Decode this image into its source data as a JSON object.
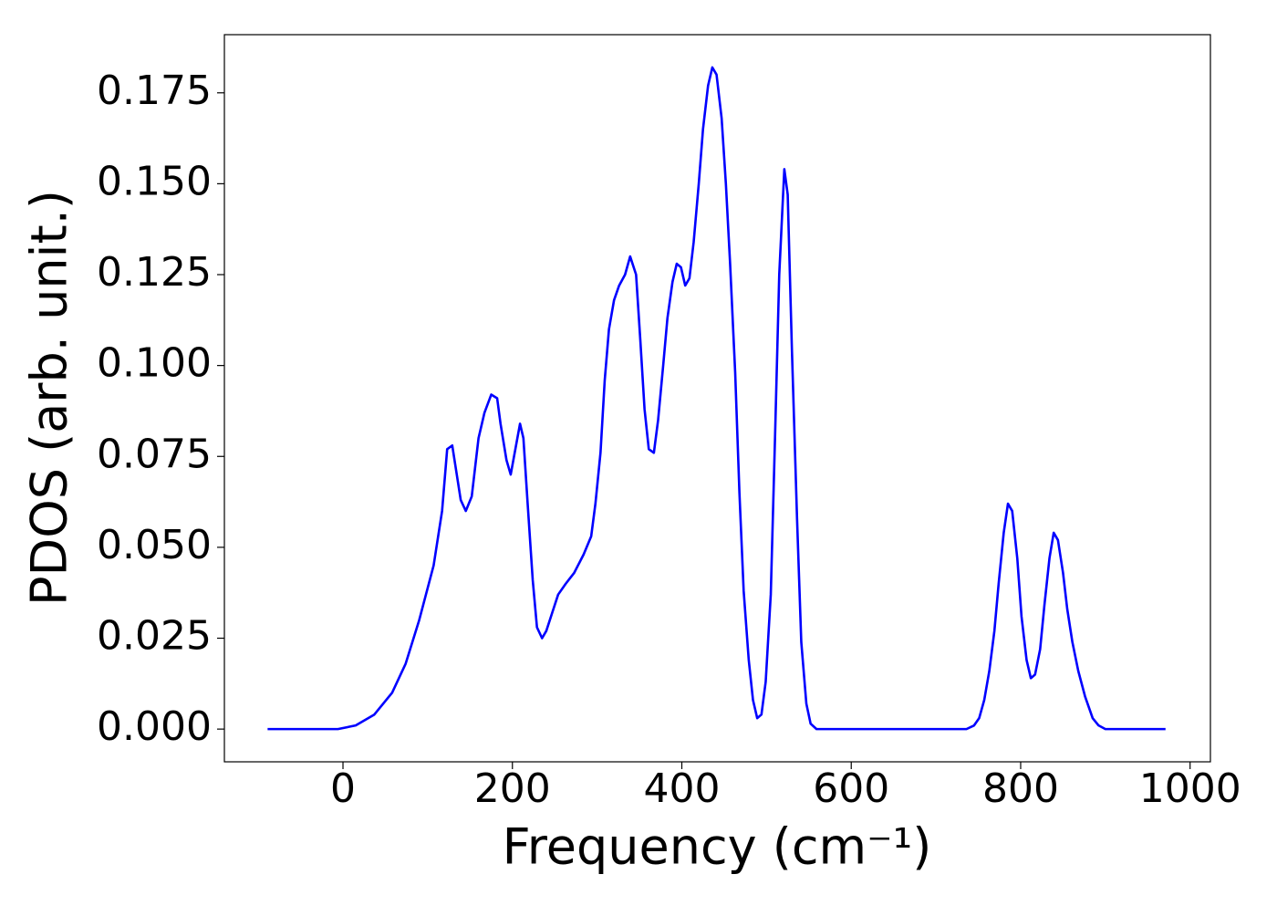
{
  "chart_data": {
    "type": "line",
    "xlabel": "Frequency (cm⁻¹)",
    "ylabel": "PDOS (arb. unit.)",
    "color": "#0000ff",
    "xlim": [
      -140,
      1024
    ],
    "ylim": [
      -0.009,
      0.191
    ],
    "xticks": [
      0,
      200,
      400,
      600,
      800,
      1000
    ],
    "yticks": [
      {
        "value": 0,
        "label": "0.000"
      },
      {
        "value": 0.025,
        "label": "0.025"
      },
      {
        "value": 0.05,
        "label": "0.050"
      },
      {
        "value": 0.075,
        "label": "0.075"
      },
      {
        "value": 0.1,
        "label": "0.100"
      },
      {
        "value": 0.125,
        "label": "0.125"
      },
      {
        "value": 0.15,
        "label": "0.150"
      },
      {
        "value": 0.175,
        "label": "0.175"
      }
    ],
    "x": [
      -89,
      -6,
      15,
      37,
      58,
      74,
      90,
      107,
      117,
      123,
      129,
      139,
      145,
      152,
      160,
      167,
      175,
      182,
      186,
      193,
      198,
      209,
      213,
      218,
      224,
      229,
      235,
      240,
      247,
      254,
      263,
      273,
      284,
      293,
      298,
      304,
      309,
      314,
      320,
      326,
      333,
      339,
      346,
      351,
      356,
      361,
      367,
      372,
      378,
      383,
      389,
      394,
      399,
      404,
      409,
      414,
      420,
      425,
      431,
      436,
      441,
      447,
      452,
      457,
      463,
      468,
      473,
      479,
      484,
      489,
      494,
      499,
      505,
      510,
      515,
      521,
      525,
      530,
      536,
      541,
      547,
      552,
      559,
      736,
      745,
      751,
      757,
      763,
      769,
      774,
      780,
      785,
      790,
      796,
      801,
      807,
      812,
      817,
      823,
      828,
      834,
      839,
      844,
      850,
      855,
      861,
      868,
      876,
      885,
      892,
      900,
      971
    ],
    "values": [
      0,
      0,
      0.001,
      0.004,
      0.01,
      0.018,
      0.03,
      0.045,
      0.06,
      0.077,
      0.078,
      0.063,
      0.06,
      0.064,
      0.08,
      0.087,
      0.092,
      0.091,
      0.084,
      0.074,
      0.07,
      0.084,
      0.08,
      0.062,
      0.041,
      0.028,
      0.025,
      0.027,
      0.032,
      0.037,
      0.04,
      0.043,
      0.048,
      0.053,
      0.062,
      0.076,
      0.096,
      0.11,
      0.118,
      0.122,
      0.125,
      0.13,
      0.125,
      0.107,
      0.088,
      0.077,
      0.076,
      0.085,
      0.1,
      0.113,
      0.123,
      0.128,
      0.127,
      0.122,
      0.124,
      0.134,
      0.15,
      0.165,
      0.177,
      0.182,
      0.18,
      0.168,
      0.15,
      0.128,
      0.098,
      0.065,
      0.038,
      0.019,
      0.008,
      0.003,
      0.004,
      0.013,
      0.037,
      0.08,
      0.125,
      0.154,
      0.147,
      0.104,
      0.058,
      0.024,
      0.007,
      0.0015,
      0,
      0,
      0.001,
      0.003,
      0.008,
      0.016,
      0.027,
      0.04,
      0.054,
      0.062,
      0.06,
      0.047,
      0.031,
      0.019,
      0.014,
      0.015,
      0.022,
      0.034,
      0.047,
      0.054,
      0.052,
      0.043,
      0.033,
      0.024,
      0.016,
      0.009,
      0.003,
      0.001,
      0,
      0
    ]
  }
}
